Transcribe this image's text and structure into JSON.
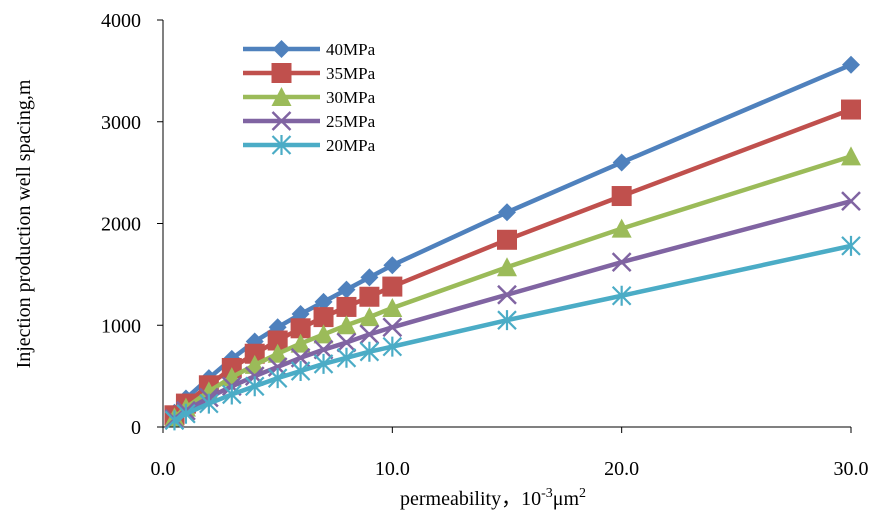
{
  "chart_data": {
    "type": "line",
    "title": "",
    "xlabel": "permeability，10",
    "xlabel_exponent": "-3",
    "xlabel_unit": "μm",
    "xlabel_unit_exponent": "2",
    "ylabel": "Injection production well spacing,m",
    "xlim": [
      0,
      30
    ],
    "ylim": [
      0,
      4000
    ],
    "x_ticks": [
      0,
      10,
      20,
      30
    ],
    "x_tick_labels": [
      "0.0",
      "10.0",
      "20.0",
      "30.0"
    ],
    "y_ticks": [
      0,
      1000,
      2000,
      3000,
      4000
    ],
    "y_tick_labels": [
      "0",
      "1000",
      "2000",
      "3000",
      "4000"
    ],
    "grid": false,
    "legend_position": "top-left",
    "x": [
      0.5,
      1,
      2,
      3,
      4,
      5,
      6,
      7,
      8,
      9,
      10,
      15,
      20,
      30
    ],
    "series": [
      {
        "name": "40MPa",
        "color": "#4f81bd",
        "marker": "diamond",
        "values": [
          140,
          280,
          480,
          670,
          840,
          980,
          1110,
          1230,
          1350,
          1470,
          1590,
          2110,
          2600,
          3560
        ]
      },
      {
        "name": "35MPa",
        "color": "#c0504d",
        "marker": "square",
        "values": [
          115,
          230,
          410,
          580,
          720,
          850,
          970,
          1080,
          1180,
          1280,
          1380,
          1840,
          2270,
          3120
        ]
      },
      {
        "name": "30MPa",
        "color": "#9bbb59",
        "marker": "triangle",
        "values": [
          95,
          190,
          350,
          490,
          610,
          720,
          820,
          910,
          1000,
          1080,
          1170,
          1570,
          1950,
          2660
        ]
      },
      {
        "name": "25MPa",
        "color": "#8064a2",
        "marker": "x",
        "values": [
          80,
          160,
          290,
          400,
          500,
          590,
          680,
          760,
          830,
          910,
          980,
          1300,
          1620,
          2220
        ]
      },
      {
        "name": "20MPa",
        "color": "#4bacc6",
        "marker": "star",
        "values": [
          65,
          130,
          230,
          320,
          400,
          480,
          550,
          620,
          680,
          740,
          790,
          1050,
          1290,
          1780
        ]
      }
    ]
  }
}
